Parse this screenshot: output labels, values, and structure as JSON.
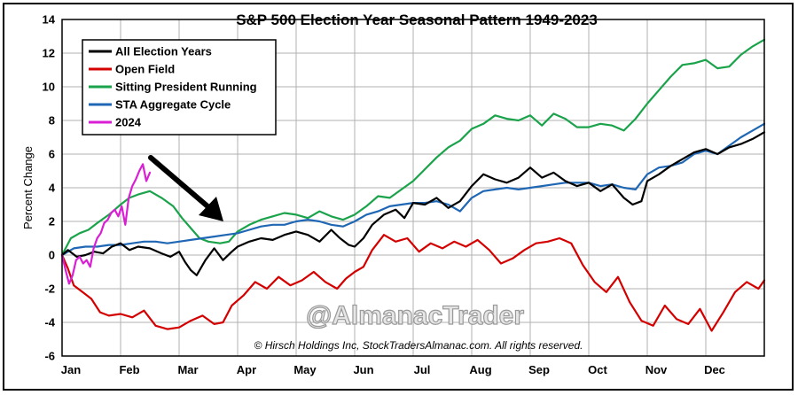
{
  "chart_data": {
    "type": "line",
    "title": "S&P 500 Election Year Seasonal Pattern 1949-2023",
    "ylabel": "Percent Change",
    "xlabel": "",
    "ylim": [
      -6,
      14
    ],
    "yticks": [
      -6,
      -4,
      -2,
      0,
      2,
      4,
      6,
      8,
      10,
      12,
      14
    ],
    "xlim": [
      0,
      12
    ],
    "months": [
      "Jan",
      "Feb",
      "Mar",
      "Apr",
      "May",
      "Jun",
      "Jul",
      "Aug",
      "Sep",
      "Oct",
      "Nov",
      "Dec"
    ],
    "grid": true,
    "legend_position": "top-left",
    "watermark": "@AlmanacTrader",
    "copyright": "© Hirsch Holdings Inc, StockTradersAlmanac.com. All rights reserved.",
    "annotation": "arrow pointing down-right toward late March",
    "series": [
      {
        "name": "All Election Years",
        "color": "#000000",
        "x": [
          0,
          0.1,
          0.25,
          0.4,
          0.55,
          0.7,
          0.85,
          1.0,
          1.15,
          1.3,
          1.5,
          1.7,
          1.85,
          2.0,
          2.1,
          2.2,
          2.3,
          2.45,
          2.6,
          2.75,
          2.9,
          3.0,
          3.2,
          3.4,
          3.6,
          3.8,
          4.0,
          4.2,
          4.4,
          4.6,
          4.75,
          4.9,
          5.0,
          5.15,
          5.3,
          5.5,
          5.7,
          5.85,
          6.0,
          6.2,
          6.4,
          6.6,
          6.8,
          7.0,
          7.2,
          7.4,
          7.6,
          7.8,
          8.0,
          8.2,
          8.4,
          8.6,
          8.8,
          9.0,
          9.2,
          9.4,
          9.6,
          9.75,
          9.9,
          10.0,
          10.2,
          10.4,
          10.6,
          10.8,
          11.0,
          11.2,
          11.4,
          11.6,
          11.8,
          12.0
        ],
        "values": [
          0,
          0.3,
          -0.1,
          0.0,
          0.2,
          0.1,
          0.5,
          0.7,
          0.3,
          0.5,
          0.4,
          0.1,
          -0.1,
          0.2,
          -0.4,
          -0.9,
          -1.2,
          -0.3,
          0.4,
          -0.3,
          0.2,
          0.5,
          0.8,
          1.0,
          0.9,
          1.2,
          1.4,
          1.2,
          0.8,
          1.5,
          1.0,
          0.6,
          0.5,
          1.0,
          1.8,
          2.4,
          2.7,
          2.2,
          3.1,
          3.0,
          3.4,
          2.8,
          3.2,
          4.1,
          4.8,
          4.5,
          4.3,
          4.6,
          5.2,
          4.6,
          4.9,
          4.4,
          4.1,
          4.3,
          3.8,
          4.2,
          3.4,
          3.0,
          3.2,
          4.4,
          4.8,
          5.3,
          5.7,
          6.1,
          6.3,
          6.0,
          6.4,
          6.6,
          6.9,
          7.3
        ]
      },
      {
        "name": "Open Field",
        "color": "#d40000",
        "x": [
          0,
          0.1,
          0.2,
          0.35,
          0.5,
          0.65,
          0.8,
          1.0,
          1.2,
          1.4,
          1.6,
          1.8,
          2.0,
          2.2,
          2.4,
          2.6,
          2.75,
          2.9,
          3.1,
          3.3,
          3.5,
          3.7,
          3.9,
          4.1,
          4.3,
          4.5,
          4.7,
          4.85,
          5.0,
          5.15,
          5.3,
          5.5,
          5.7,
          5.9,
          6.1,
          6.3,
          6.5,
          6.7,
          6.9,
          7.1,
          7.3,
          7.5,
          7.7,
          7.9,
          8.1,
          8.3,
          8.5,
          8.7,
          8.9,
          9.1,
          9.3,
          9.5,
          9.7,
          9.9,
          10.1,
          10.3,
          10.5,
          10.7,
          10.9,
          11.1,
          11.3,
          11.5,
          11.7,
          11.9,
          12.0
        ],
        "values": [
          0,
          -0.8,
          -1.8,
          -2.2,
          -2.6,
          -3.4,
          -3.6,
          -3.5,
          -3.7,
          -3.3,
          -4.2,
          -4.4,
          -4.3,
          -3.9,
          -3.6,
          -4.1,
          -4.0,
          -3.0,
          -2.4,
          -1.6,
          -2.0,
          -1.3,
          -1.8,
          -1.5,
          -1.0,
          -1.6,
          -2.0,
          -1.4,
          -1.0,
          -0.7,
          0.3,
          1.2,
          0.8,
          1.0,
          0.2,
          0.7,
          0.4,
          0.8,
          0.5,
          0.9,
          0.3,
          -0.5,
          -0.2,
          0.3,
          0.7,
          0.8,
          1.0,
          0.7,
          -0.6,
          -1.6,
          -2.2,
          -1.3,
          -2.8,
          -3.9,
          -4.2,
          -3.0,
          -3.8,
          -4.1,
          -3.2,
          -4.5,
          -3.4,
          -2.2,
          -1.6,
          -2.0,
          -1.5
        ]
      },
      {
        "name": "Sitting President Running",
        "color": "#1aa34a",
        "x": [
          0,
          0.15,
          0.3,
          0.45,
          0.6,
          0.8,
          1.0,
          1.15,
          1.3,
          1.5,
          1.7,
          1.9,
          2.05,
          2.2,
          2.35,
          2.5,
          2.7,
          2.85,
          3.0,
          3.2,
          3.4,
          3.6,
          3.8,
          4.0,
          4.2,
          4.4,
          4.6,
          4.8,
          5.0,
          5.2,
          5.4,
          5.6,
          5.8,
          6.0,
          6.2,
          6.4,
          6.6,
          6.8,
          7.0,
          7.2,
          7.4,
          7.6,
          7.8,
          8.0,
          8.2,
          8.4,
          8.6,
          8.8,
          9.0,
          9.2,
          9.4,
          9.6,
          9.8,
          10.0,
          10.2,
          10.4,
          10.6,
          10.8,
          11.0,
          11.2,
          11.4,
          11.6,
          11.8,
          12.0
        ],
        "values": [
          0,
          1.0,
          1.3,
          1.5,
          1.9,
          2.4,
          3.0,
          3.4,
          3.6,
          3.8,
          3.4,
          2.9,
          2.2,
          1.6,
          1.0,
          0.8,
          0.7,
          0.8,
          1.4,
          1.8,
          2.1,
          2.3,
          2.5,
          2.4,
          2.2,
          2.6,
          2.3,
          2.1,
          2.4,
          2.9,
          3.5,
          3.4,
          3.9,
          4.4,
          5.1,
          5.8,
          6.4,
          6.8,
          7.5,
          7.8,
          8.3,
          8.1,
          8.0,
          8.3,
          7.7,
          8.4,
          8.1,
          7.6,
          7.6,
          7.8,
          7.7,
          7.4,
          8.1,
          9.0,
          9.8,
          10.6,
          11.3,
          11.4,
          11.6,
          11.1,
          11.2,
          11.9,
          12.4,
          12.8
        ]
      },
      {
        "name": "STA Aggregate Cycle",
        "color": "#1f67b4",
        "x": [
          0,
          0.2,
          0.4,
          0.6,
          0.8,
          1.0,
          1.2,
          1.4,
          1.6,
          1.8,
          2.0,
          2.2,
          2.4,
          2.6,
          2.8,
          3.0,
          3.2,
          3.4,
          3.6,
          3.8,
          4.0,
          4.2,
          4.4,
          4.6,
          4.8,
          5.0,
          5.2,
          5.4,
          5.6,
          5.8,
          6.0,
          6.2,
          6.4,
          6.6,
          6.8,
          7.0,
          7.2,
          7.4,
          7.6,
          7.8,
          8.0,
          8.2,
          8.4,
          8.6,
          8.8,
          9.0,
          9.2,
          9.4,
          9.6,
          9.8,
          10.0,
          10.2,
          10.4,
          10.6,
          10.8,
          11.0,
          11.2,
          11.4,
          11.6,
          11.8,
          12.0
        ],
        "values": [
          0,
          0.4,
          0.5,
          0.5,
          0.6,
          0.6,
          0.7,
          0.8,
          0.8,
          0.7,
          0.8,
          0.9,
          1.0,
          1.1,
          1.2,
          1.3,
          1.5,
          1.7,
          1.8,
          1.8,
          2.0,
          2.1,
          2.0,
          1.8,
          1.7,
          2.0,
          2.4,
          2.6,
          2.9,
          3.0,
          3.1,
          3.1,
          3.2,
          3.0,
          2.6,
          3.4,
          3.8,
          3.9,
          4.0,
          3.9,
          4.0,
          4.1,
          4.2,
          4.3,
          4.3,
          4.3,
          4.1,
          4.2,
          4.0,
          3.9,
          4.8,
          5.2,
          5.3,
          5.5,
          6.0,
          6.2,
          6.0,
          6.5,
          7.0,
          7.4,
          7.8
        ]
      },
      {
        "name": "2024",
        "color": "#d91fd4",
        "x": [
          0,
          0.06,
          0.12,
          0.18,
          0.24,
          0.3,
          0.36,
          0.42,
          0.48,
          0.54,
          0.6,
          0.66,
          0.72,
          0.78,
          0.84,
          0.9,
          0.96,
          1.02,
          1.08,
          1.14,
          1.2,
          1.26,
          1.32,
          1.38,
          1.44,
          1.5
        ],
        "values": [
          0,
          -0.9,
          -1.7,
          -1.2,
          -0.3,
          -0.1,
          -0.5,
          -0.3,
          -0.7,
          0.4,
          1.0,
          1.3,
          1.9,
          2.1,
          2.5,
          2.7,
          2.3,
          2.9,
          1.8,
          3.4,
          4.1,
          4.5,
          5.0,
          5.4,
          4.4,
          4.9
        ]
      }
    ]
  }
}
